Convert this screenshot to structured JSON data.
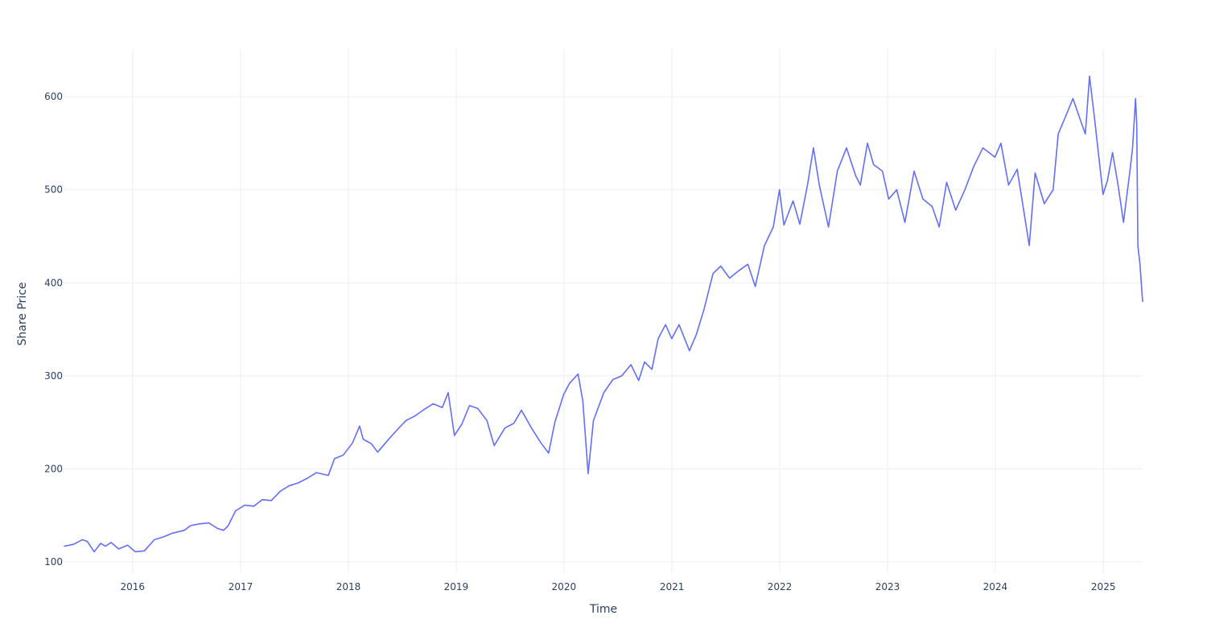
{
  "chart_data": {
    "type": "line",
    "xlabel": "Time",
    "ylabel": "Share Price",
    "x_range": [
      "2015-05-15",
      "2025-05-14"
    ],
    "ylim": [
      88,
      652
    ],
    "x_ticks": [
      {
        "date": "2016-01-01",
        "label": "2016"
      },
      {
        "date": "2017-01-01",
        "label": "2017"
      },
      {
        "date": "2018-01-01",
        "label": "2018"
      },
      {
        "date": "2019-01-01",
        "label": "2019"
      },
      {
        "date": "2020-01-01",
        "label": "2020"
      },
      {
        "date": "2021-01-01",
        "label": "2021"
      },
      {
        "date": "2022-01-01",
        "label": "2022"
      },
      {
        "date": "2023-01-01",
        "label": "2023"
      },
      {
        "date": "2024-01-01",
        "label": "2024"
      },
      {
        "date": "2025-01-01",
        "label": "2025"
      }
    ],
    "y_ticks": [
      {
        "value": 100,
        "label": "100"
      },
      {
        "value": 200,
        "label": "200"
      },
      {
        "value": 300,
        "label": "300"
      },
      {
        "value": 400,
        "label": "400"
      },
      {
        "value": 500,
        "label": "500"
      },
      {
        "value": 600,
        "label": "600"
      }
    ],
    "grid": true,
    "legend": false,
    "series": [
      {
        "color": "#636efa",
        "points": [
          [
            "2015-05-15",
            117
          ],
          [
            "2015-06-15",
            119
          ],
          [
            "2015-07-15",
            124
          ],
          [
            "2015-08-01",
            122
          ],
          [
            "2015-08-24",
            111
          ],
          [
            "2015-09-15",
            120
          ],
          [
            "2015-10-01",
            117
          ],
          [
            "2015-10-20",
            121
          ],
          [
            "2015-11-15",
            114
          ],
          [
            "2015-12-15",
            118
          ],
          [
            "2016-01-10",
            111
          ],
          [
            "2016-02-10",
            112
          ],
          [
            "2016-03-15",
            124
          ],
          [
            "2016-04-15",
            127
          ],
          [
            "2016-05-15",
            131
          ],
          [
            "2016-06-24",
            134
          ],
          [
            "2016-07-15",
            139
          ],
          [
            "2016-08-15",
            141
          ],
          [
            "2016-09-15",
            142
          ],
          [
            "2016-10-15",
            136
          ],
          [
            "2016-11-04",
            134
          ],
          [
            "2016-11-20",
            139
          ],
          [
            "2016-12-15",
            155
          ],
          [
            "2017-01-15",
            161
          ],
          [
            "2017-02-15",
            160
          ],
          [
            "2017-03-15",
            167
          ],
          [
            "2017-04-15",
            166
          ],
          [
            "2017-05-15",
            176
          ],
          [
            "2017-06-15",
            182
          ],
          [
            "2017-07-15",
            185
          ],
          [
            "2017-08-15",
            190
          ],
          [
            "2017-09-15",
            196
          ],
          [
            "2017-10-25",
            193
          ],
          [
            "2017-11-15",
            211
          ],
          [
            "2017-12-15",
            215
          ],
          [
            "2018-01-15",
            228
          ],
          [
            "2018-02-08",
            246
          ],
          [
            "2018-02-20",
            232
          ],
          [
            "2018-03-20",
            227
          ],
          [
            "2018-04-10",
            218
          ],
          [
            "2018-05-15",
            231
          ],
          [
            "2018-06-15",
            242
          ],
          [
            "2018-07-15",
            252
          ],
          [
            "2018-08-15",
            257
          ],
          [
            "2018-09-15",
            264
          ],
          [
            "2018-10-15",
            270
          ],
          [
            "2018-11-15",
            266
          ],
          [
            "2018-12-05",
            282
          ],
          [
            "2018-12-26",
            236
          ],
          [
            "2019-01-20",
            248
          ],
          [
            "2019-02-15",
            268
          ],
          [
            "2019-03-15",
            265
          ],
          [
            "2019-04-15",
            252
          ],
          [
            "2019-05-10",
            225
          ],
          [
            "2019-06-15",
            244
          ],
          [
            "2019-07-15",
            249
          ],
          [
            "2019-08-10",
            263
          ],
          [
            "2019-09-15",
            243
          ],
          [
            "2019-10-15",
            228
          ],
          [
            "2019-11-10",
            217
          ],
          [
            "2019-12-01",
            250
          ],
          [
            "2019-12-31",
            280
          ],
          [
            "2020-01-20",
            292
          ],
          [
            "2020-02-18",
            302
          ],
          [
            "2020-03-05",
            273
          ],
          [
            "2020-03-23",
            195
          ],
          [
            "2020-04-10",
            252
          ],
          [
            "2020-05-15",
            282
          ],
          [
            "2020-06-15",
            296
          ],
          [
            "2020-07-15",
            300
          ],
          [
            "2020-08-15",
            312
          ],
          [
            "2020-09-10",
            295
          ],
          [
            "2020-09-30",
            315
          ],
          [
            "2020-10-25",
            307
          ],
          [
            "2020-11-15",
            340
          ],
          [
            "2020-12-10",
            355
          ],
          [
            "2020-12-31",
            340
          ],
          [
            "2021-01-25",
            355
          ],
          [
            "2021-03-01",
            327
          ],
          [
            "2021-03-25",
            345
          ],
          [
            "2021-04-20",
            372
          ],
          [
            "2021-05-20",
            410
          ],
          [
            "2021-06-15",
            418
          ],
          [
            "2021-07-15",
            405
          ],
          [
            "2021-08-15",
            413
          ],
          [
            "2021-09-15",
            420
          ],
          [
            "2021-10-10",
            396
          ],
          [
            "2021-11-10",
            440
          ],
          [
            "2021-12-10",
            460
          ],
          [
            "2021-12-31",
            500
          ],
          [
            "2022-01-15",
            462
          ],
          [
            "2022-02-15",
            488
          ],
          [
            "2022-03-10",
            463
          ],
          [
            "2022-04-05",
            505
          ],
          [
            "2022-04-25",
            545
          ],
          [
            "2022-05-15",
            505
          ],
          [
            "2022-06-15",
            460
          ],
          [
            "2022-07-15",
            520
          ],
          [
            "2022-08-15",
            545
          ],
          [
            "2022-09-15",
            515
          ],
          [
            "2022-10-01",
            505
          ],
          [
            "2022-10-25",
            550
          ],
          [
            "2022-11-15",
            527
          ],
          [
            "2022-12-15",
            520
          ],
          [
            "2023-01-05",
            490
          ],
          [
            "2023-02-01",
            500
          ],
          [
            "2023-03-01",
            465
          ],
          [
            "2023-04-01",
            520
          ],
          [
            "2023-05-01",
            490
          ],
          [
            "2023-06-01",
            482
          ],
          [
            "2023-06-25",
            460
          ],
          [
            "2023-07-20",
            508
          ],
          [
            "2023-08-20",
            478
          ],
          [
            "2023-09-20",
            500
          ],
          [
            "2023-10-20",
            525
          ],
          [
            "2023-11-20",
            545
          ],
          [
            "2023-12-31",
            535
          ],
          [
            "2024-01-20",
            550
          ],
          [
            "2024-02-15",
            505
          ],
          [
            "2024-03-15",
            522
          ],
          [
            "2024-04-05",
            480
          ],
          [
            "2024-04-25",
            440
          ],
          [
            "2024-05-15",
            518
          ],
          [
            "2024-06-15",
            485
          ],
          [
            "2024-07-15",
            500
          ],
          [
            "2024-08-01",
            560
          ],
          [
            "2024-08-25",
            578
          ],
          [
            "2024-09-20",
            598
          ],
          [
            "2024-10-15",
            575
          ],
          [
            "2024-11-01",
            560
          ],
          [
            "2024-11-15",
            622
          ],
          [
            "2024-12-01",
            580
          ],
          [
            "2024-12-31",
            495
          ],
          [
            "2025-01-15",
            510
          ],
          [
            "2025-02-01",
            540
          ],
          [
            "2025-02-20",
            505
          ],
          [
            "2025-03-10",
            465
          ],
          [
            "2025-04-01",
            520
          ],
          [
            "2025-04-10",
            545
          ],
          [
            "2025-04-20",
            598
          ],
          [
            "2025-04-24",
            570
          ],
          [
            "2025-04-28",
            440
          ],
          [
            "2025-05-05",
            420
          ],
          [
            "2025-05-14",
            380
          ]
        ]
      }
    ]
  }
}
